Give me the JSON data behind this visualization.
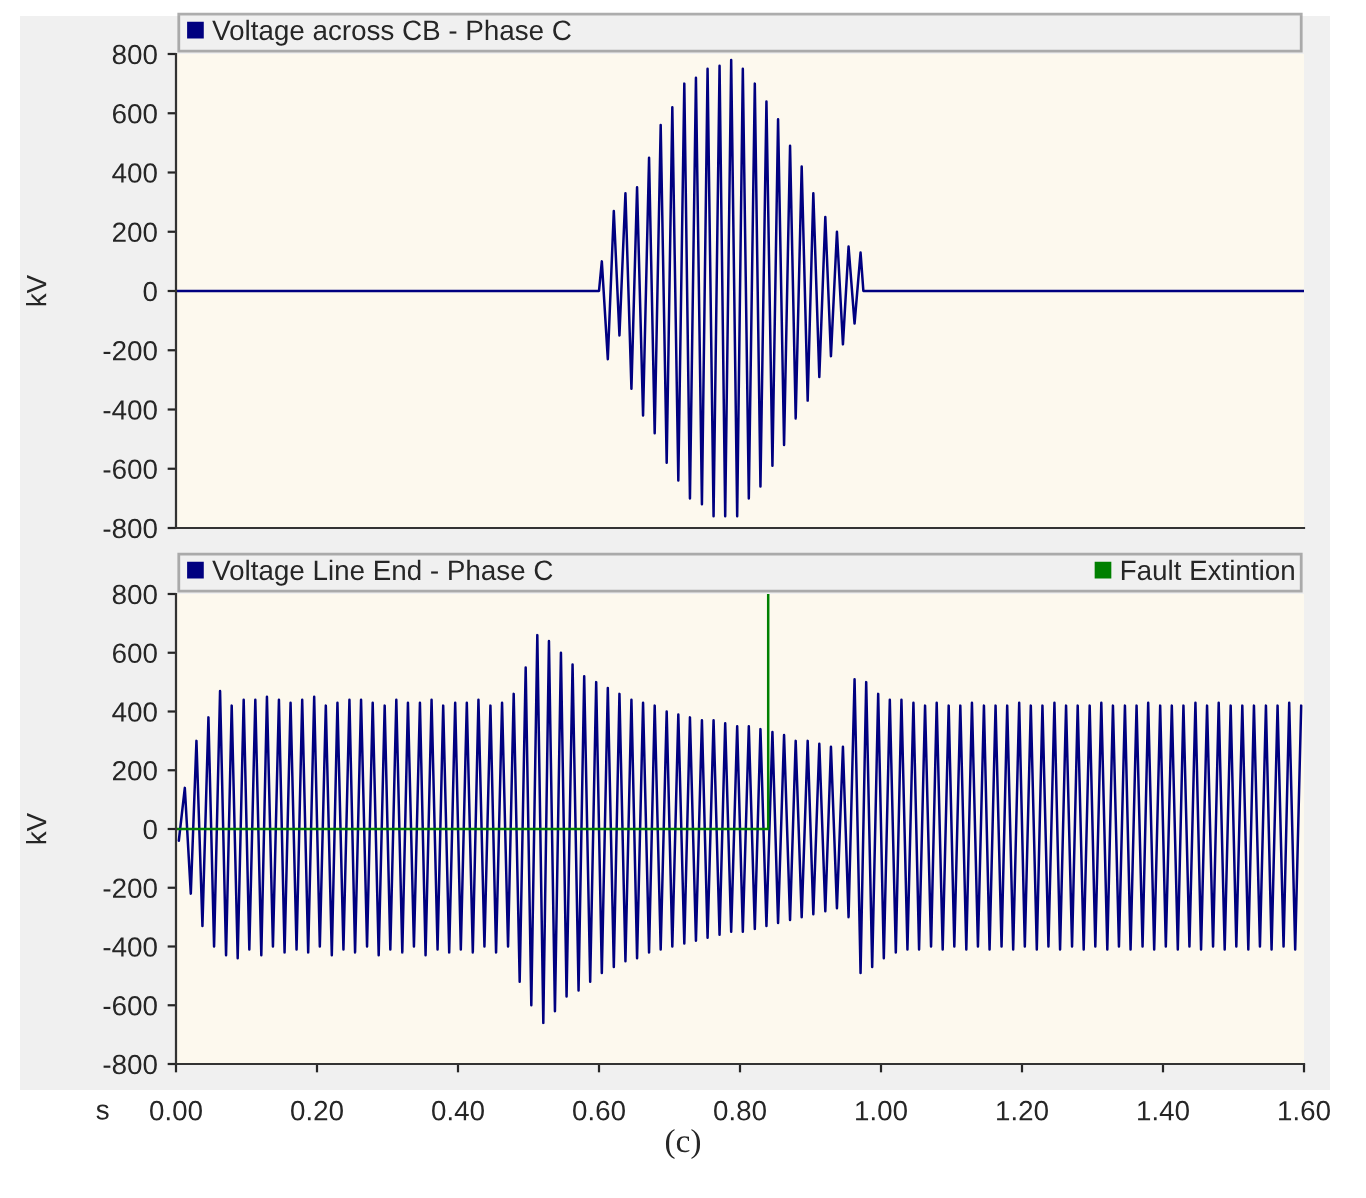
{
  "chart_data": [
    {
      "type": "line",
      "ylabel": "kV",
      "xlim": [
        0,
        1.6
      ],
      "ylim": [
        -800,
        800
      ],
      "yticks": [
        -800,
        -600,
        -400,
        -200,
        0,
        200,
        400,
        600,
        800
      ],
      "tick_labels": "y",
      "grid": false,
      "legend": "top",
      "series": [
        {
          "name": "Voltage across CB - Phase C",
          "color": "#000080",
          "x": [
            0,
            0.6,
            0.604,
            0.6125,
            0.621,
            0.629,
            0.6375,
            0.646,
            0.654,
            0.6625,
            0.671,
            0.679,
            0.6875,
            0.696,
            0.704,
            0.7125,
            0.721,
            0.729,
            0.7375,
            0.746,
            0.754,
            0.7625,
            0.771,
            0.779,
            0.7875,
            0.796,
            0.804,
            0.8125,
            0.821,
            0.829,
            0.8375,
            0.846,
            0.854,
            0.8625,
            0.871,
            0.879,
            0.8875,
            0.896,
            0.904,
            0.9125,
            0.921,
            0.929,
            0.9375,
            0.946,
            0.954,
            0.9625,
            0.971,
            0.975,
            1.6
          ],
          "values": [
            0,
            0,
            100,
            -230,
            270,
            -150,
            330,
            -330,
            350,
            -420,
            450,
            -480,
            560,
            -580,
            620,
            -640,
            700,
            -700,
            720,
            -720,
            750,
            -760,
            760,
            -760,
            780,
            -760,
            750,
            -700,
            700,
            -660,
            640,
            -590,
            580,
            -520,
            490,
            -430,
            420,
            -370,
            330,
            -290,
            250,
            -220,
            200,
            -180,
            150,
            -110,
            130,
            0,
            0
          ]
        }
      ]
    },
    {
      "type": "line",
      "ylabel": "kV",
      "xlabel": "s",
      "xlim": [
        0,
        1.6
      ],
      "ylim": [
        -800,
        800
      ],
      "yticks": [
        -800,
        -600,
        -400,
        -200,
        0,
        200,
        400,
        600,
        800
      ],
      "xticks": [
        {
          "value": 0,
          "label": "0.00"
        },
        {
          "value": 0.2,
          "label": "0.20"
        },
        {
          "value": 0.4,
          "label": "0.40"
        },
        {
          "value": 0.6,
          "label": "0.60"
        },
        {
          "value": 0.8,
          "label": "0.80"
        },
        {
          "value": 1.0,
          "label": "1.00"
        },
        {
          "value": 1.2,
          "label": "1.20"
        },
        {
          "value": 1.4,
          "label": "1.40"
        },
        {
          "value": 1.6,
          "label": "1.60"
        }
      ],
      "grid": false,
      "legend": "top",
      "annotations": [
        "(c)"
      ],
      "series": [
        {
          "name": "Voltage Line End - Phase C",
          "color": "#000080",
          "x": [
            0.004,
            0.0125,
            0.021,
            0.029,
            0.0375,
            0.046,
            0.054,
            0.0625,
            0.071,
            0.079,
            0.0875,
            0.096,
            0.104,
            0.1125,
            0.121,
            0.129,
            0.1375,
            0.146,
            0.154,
            0.1625,
            0.171,
            0.179,
            0.1875,
            0.196,
            0.204,
            0.2125,
            0.221,
            0.229,
            0.2375,
            0.246,
            0.254,
            0.2625,
            0.271,
            0.279,
            0.2875,
            0.296,
            0.304,
            0.3125,
            0.321,
            0.329,
            0.3375,
            0.346,
            0.354,
            0.3625,
            0.371,
            0.379,
            0.3875,
            0.396,
            0.404,
            0.4125,
            0.421,
            0.429,
            0.4375,
            0.446,
            0.454,
            0.4625,
            0.471,
            0.479,
            0.4875,
            0.496,
            0.504,
            0.5125,
            0.521,
            0.529,
            0.5375,
            0.546,
            0.554,
            0.5625,
            0.571,
            0.579,
            0.5875,
            0.596,
            0.604,
            0.6125,
            0.621,
            0.629,
            0.6375,
            0.646,
            0.654,
            0.6625,
            0.671,
            0.679,
            0.6875,
            0.696,
            0.704,
            0.7125,
            0.721,
            0.729,
            0.7375,
            0.746,
            0.754,
            0.7625,
            0.771,
            0.779,
            0.7875,
            0.796,
            0.804,
            0.8125,
            0.821,
            0.829,
            0.8375,
            0.846,
            0.854,
            0.8625,
            0.871,
            0.879,
            0.8875,
            0.896,
            0.904,
            0.9125,
            0.921,
            0.929,
            0.9375,
            0.946,
            0.954,
            0.9625,
            0.971,
            0.979,
            0.9875,
            0.996,
            1.004,
            1.0125,
            1.021,
            1.029,
            1.0375,
            1.046,
            1.054,
            1.0625,
            1.071,
            1.079,
            1.0875,
            1.096,
            1.104,
            1.1125,
            1.121,
            1.129,
            1.1375,
            1.146,
            1.154,
            1.1625,
            1.171,
            1.179,
            1.1875,
            1.196,
            1.204,
            1.2125,
            1.221,
            1.229,
            1.2375,
            1.246,
            1.254,
            1.2625,
            1.271,
            1.279,
            1.2875,
            1.296,
            1.304,
            1.3125,
            1.321,
            1.329,
            1.3375,
            1.346,
            1.354,
            1.3625,
            1.371,
            1.379,
            1.3875,
            1.396,
            1.404,
            1.4125,
            1.421,
            1.429,
            1.4375,
            1.446,
            1.454,
            1.4625,
            1.471,
            1.479,
            1.4875,
            1.496,
            1.504,
            1.5125,
            1.521,
            1.529,
            1.5375,
            1.546,
            1.554,
            1.5625,
            1.571,
            1.579,
            1.5875,
            1.596
          ],
          "values": [
            -40,
            140,
            -220,
            300,
            -330,
            380,
            -400,
            470,
            -430,
            420,
            -440,
            440,
            -410,
            440,
            -430,
            450,
            -400,
            440,
            -420,
            430,
            -410,
            440,
            -420,
            450,
            -400,
            420,
            -430,
            430,
            -410,
            440,
            -420,
            440,
            -400,
            430,
            -430,
            420,
            -410,
            440,
            -420,
            430,
            -400,
            430,
            -430,
            440,
            -410,
            420,
            -420,
            430,
            -410,
            430,
            -420,
            440,
            -400,
            420,
            -420,
            430,
            -400,
            460,
            -520,
            550,
            -600,
            660,
            -660,
            640,
            -620,
            600,
            -570,
            560,
            -550,
            520,
            -520,
            500,
            -490,
            480,
            -470,
            460,
            -450,
            440,
            -440,
            430,
            -420,
            420,
            -410,
            400,
            -400,
            390,
            -390,
            380,
            -380,
            370,
            -370,
            370,
            -360,
            360,
            -350,
            350,
            -350,
            350,
            -340,
            340,
            -330,
            330,
            -320,
            320,
            -310,
            300,
            -300,
            300,
            -290,
            290,
            -280,
            280,
            -270,
            280,
            -300,
            510,
            -490,
            500,
            -470,
            460,
            -440,
            440,
            -420,
            440,
            -410,
            430,
            -410,
            420,
            -400,
            430,
            -410,
            420,
            -400,
            420,
            -410,
            430,
            -400,
            420,
            -410,
            420,
            -400,
            420,
            -410,
            430,
            -400,
            420,
            -410,
            420,
            -400,
            430,
            -410,
            420,
            -400,
            420,
            -410,
            420,
            -400,
            430,
            -410,
            420,
            -400,
            420,
            -410,
            420,
            -400,
            430,
            -410,
            420,
            -400,
            420,
            -410,
            420,
            -400,
            430,
            -410,
            420,
            -400,
            430,
            -410,
            420,
            -400,
            420,
            -410,
            420,
            -400,
            420,
            -410,
            420,
            -400,
            430,
            -410,
            420
          ]
        },
        {
          "name": "Fault Extintion",
          "color": "#008000",
          "x": [
            0,
            0.84,
            0.84
          ],
          "values": [
            0,
            0,
            800
          ]
        }
      ]
    }
  ]
}
